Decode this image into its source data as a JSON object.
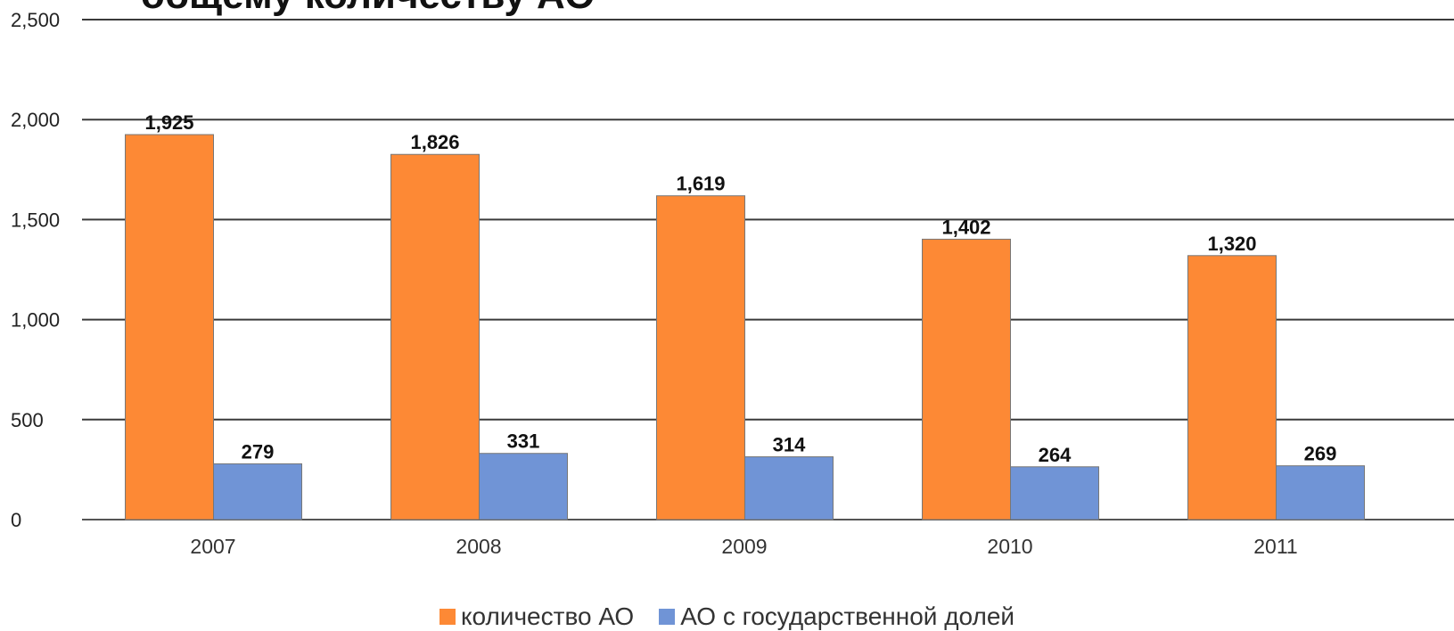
{
  "chart_data": {
    "type": "bar",
    "title": "общему количеству АО",
    "categories": [
      "2007",
      "2008",
      "2009",
      "2010",
      "2011"
    ],
    "series": [
      {
        "name": "количество АО",
        "values": [
          1925,
          1826,
          1619,
          1402,
          1320
        ],
        "color": "#fd8935"
      },
      {
        "name": "АО с государственной долей",
        "values": [
          279,
          331,
          314,
          264,
          269
        ],
        "color": "#7094d6"
      }
    ],
    "ylim": [
      0,
      2500
    ],
    "yticks": [
      0,
      500,
      1000,
      1500,
      2000,
      2500
    ],
    "ytick_labels": [
      "0",
      "500",
      "1,000",
      "1,500",
      "2,000",
      "2,500"
    ],
    "data_labels": [
      [
        "1,925",
        "1,826",
        "1,619",
        "1,402",
        "1,320"
      ],
      [
        "279",
        "331",
        "314",
        "264",
        "269"
      ]
    ],
    "grid": true,
    "legend_position": "bottom"
  }
}
